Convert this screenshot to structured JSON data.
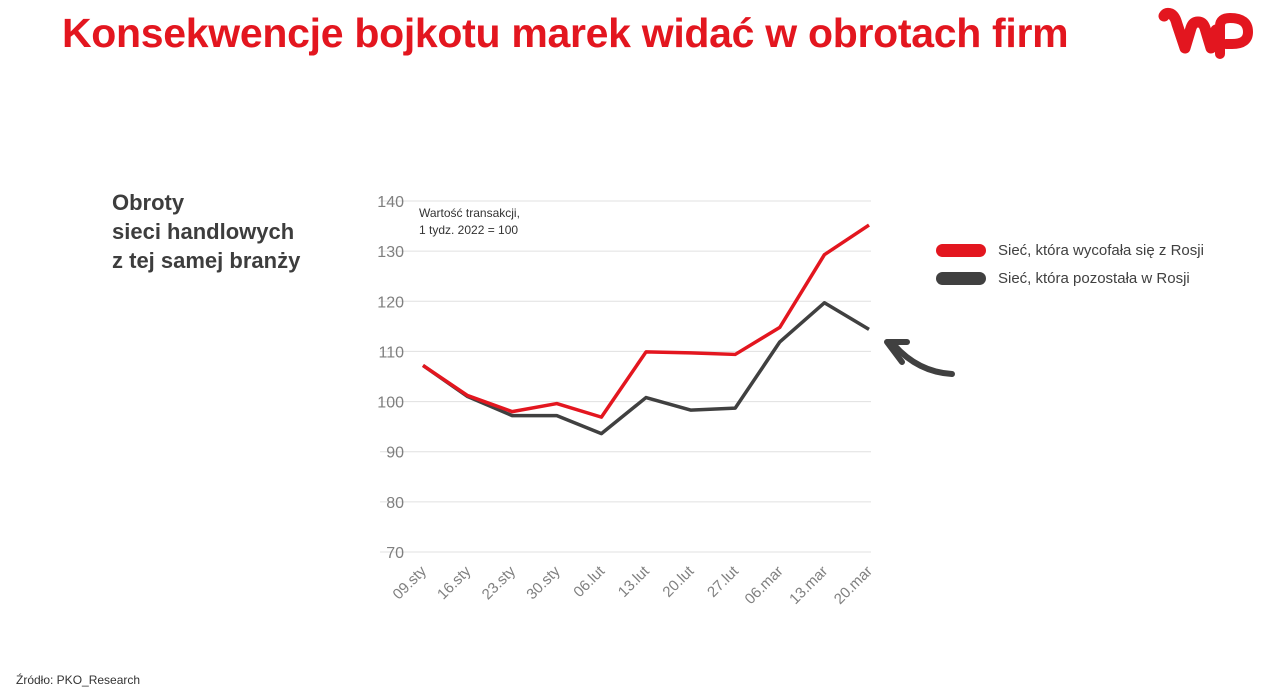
{
  "header": {
    "title": "Konsekwencje bojkotu marek widać w obrotach firm",
    "logo": "WP"
  },
  "subtitle": {
    "line1": "Obroty",
    "line2": "sieci handlowych",
    "line3": "z tej samej branży"
  },
  "note": {
    "line1": "Wartość transakcji,",
    "line2": "1 tydz. 2022 = 100"
  },
  "legend": {
    "items": [
      {
        "label": "Sieć, która wycofała się z Rosji",
        "color": "#e3161f"
      },
      {
        "label": "Sieć, która pozostała  w Rosji",
        "color": "#404040"
      }
    ]
  },
  "source": "Źródło: PKO_Research",
  "colors": {
    "brand": "#e3161f",
    "dark": "#404040",
    "grid": "#e0e0e0",
    "axis_text": "#7f7f7f"
  },
  "chart_data": {
    "type": "line",
    "title": "Konsekwencje bojkotu marek widać w obrotach firm",
    "subtitle": "Obroty sieci handlowych z tej samej branży",
    "annotation": "Wartość transakcji, 1 tydz. 2022 = 100",
    "xlabel": "",
    "ylabel": "",
    "ylim": [
      70,
      140
    ],
    "yticks": [
      70,
      80,
      90,
      100,
      110,
      120,
      130,
      140
    ],
    "grid": true,
    "legend_position": "right",
    "categories": [
      "09.sty",
      "16.sty",
      "23.sty",
      "30.sty",
      "06.lut",
      "13.lut",
      "20.lut",
      "27.lut",
      "06.mar",
      "13.mar",
      "20.mar"
    ],
    "series": [
      {
        "name": "Sieć, która wycofała się z Rosji",
        "color": "#e3161f",
        "values": [
          107.2,
          101.2,
          98.0,
          99.6,
          96.9,
          109.9,
          109.7,
          109.4,
          114.8,
          129.3,
          135.2
        ]
      },
      {
        "name": "Sieć, która pozostała  w Rosji",
        "color": "#404040",
        "values": [
          107.2,
          101.0,
          97.2,
          97.2,
          93.6,
          100.8,
          98.3,
          98.7,
          111.9,
          119.7,
          114.4
        ]
      }
    ]
  }
}
